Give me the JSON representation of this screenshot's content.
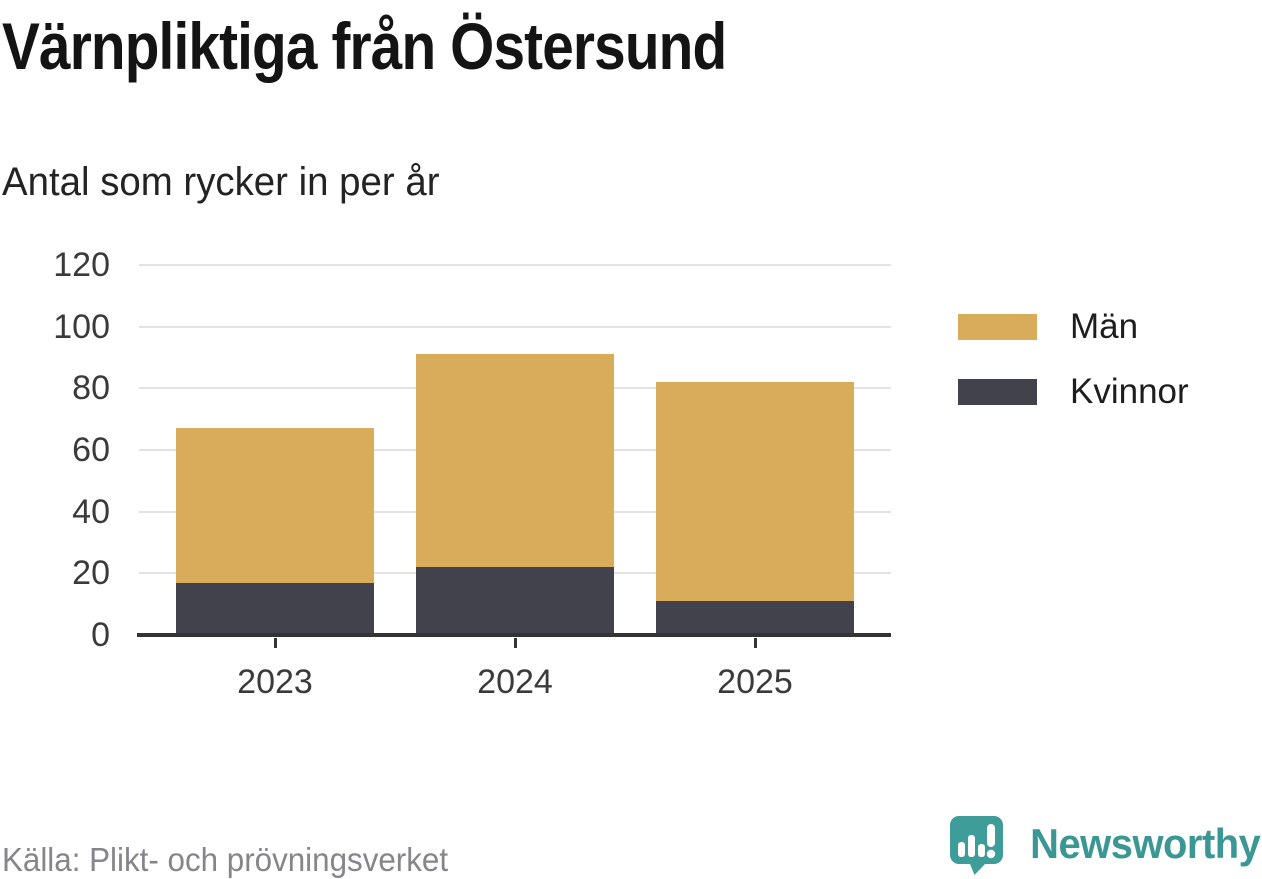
{
  "header": {
    "title": "Värnpliktiga från Östersund",
    "subtitle": "Antal som rycker in per år"
  },
  "chart_data": {
    "type": "bar",
    "stacked": true,
    "title": "Värnpliktiga från Östersund",
    "subtitle": "Antal som rycker in per år",
    "categories": [
      "2023",
      "2024",
      "2025"
    ],
    "series": [
      {
        "name": "Män",
        "color": "#d9ac5c",
        "values": [
          50,
          69,
          71
        ]
      },
      {
        "name": "Kvinnor",
        "color": "#42424d",
        "values": [
          17,
          22,
          11
        ]
      }
    ],
    "totals": [
      67,
      91,
      82
    ],
    "xlabel": "",
    "ylabel": "",
    "ylim": [
      0,
      120
    ],
    "yticks": [
      0,
      20,
      40,
      60,
      80,
      100,
      120
    ],
    "grid": true,
    "legend_position": "right"
  },
  "footer": {
    "source": "Källa: Plikt- och prövningsverket",
    "brand": "Newsworthy"
  },
  "colors": {
    "men": "#d9ac5c",
    "women": "#42424d",
    "axis": "#333338",
    "gridline": "#e2e2e4",
    "title_text": "#141414",
    "tick_text": "#3a3a3a",
    "source_text": "#85858b",
    "brand_teal": "#3a9794",
    "icon_teal": "#3f9d99"
  }
}
